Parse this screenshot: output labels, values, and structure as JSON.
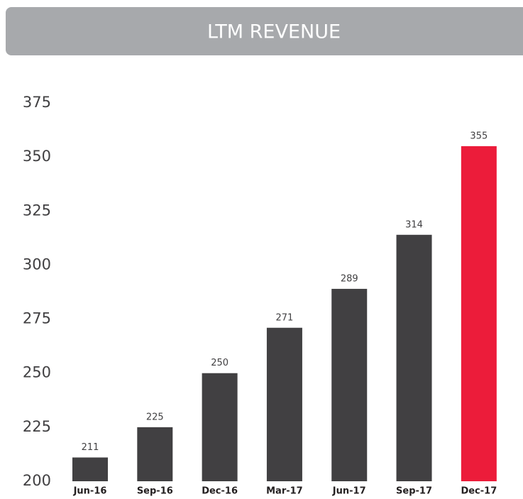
{
  "chart_data": {
    "type": "bar",
    "title": "LTM REVENUE",
    "categories": [
      "Jun-16",
      "Sep-16",
      "Dec-16",
      "Mar-17",
      "Jun-17",
      "Sep-17",
      "Dec-17"
    ],
    "values": [
      211,
      225,
      250,
      271,
      289,
      314,
      355
    ],
    "colors": [
      "#414042",
      "#414042",
      "#414042",
      "#414042",
      "#414042",
      "#414042",
      "#ec1c3a"
    ],
    "ylim": [
      200,
      375
    ],
    "yticks": [
      200,
      225,
      250,
      275,
      300,
      325,
      350,
      375
    ],
    "grid": false
  }
}
